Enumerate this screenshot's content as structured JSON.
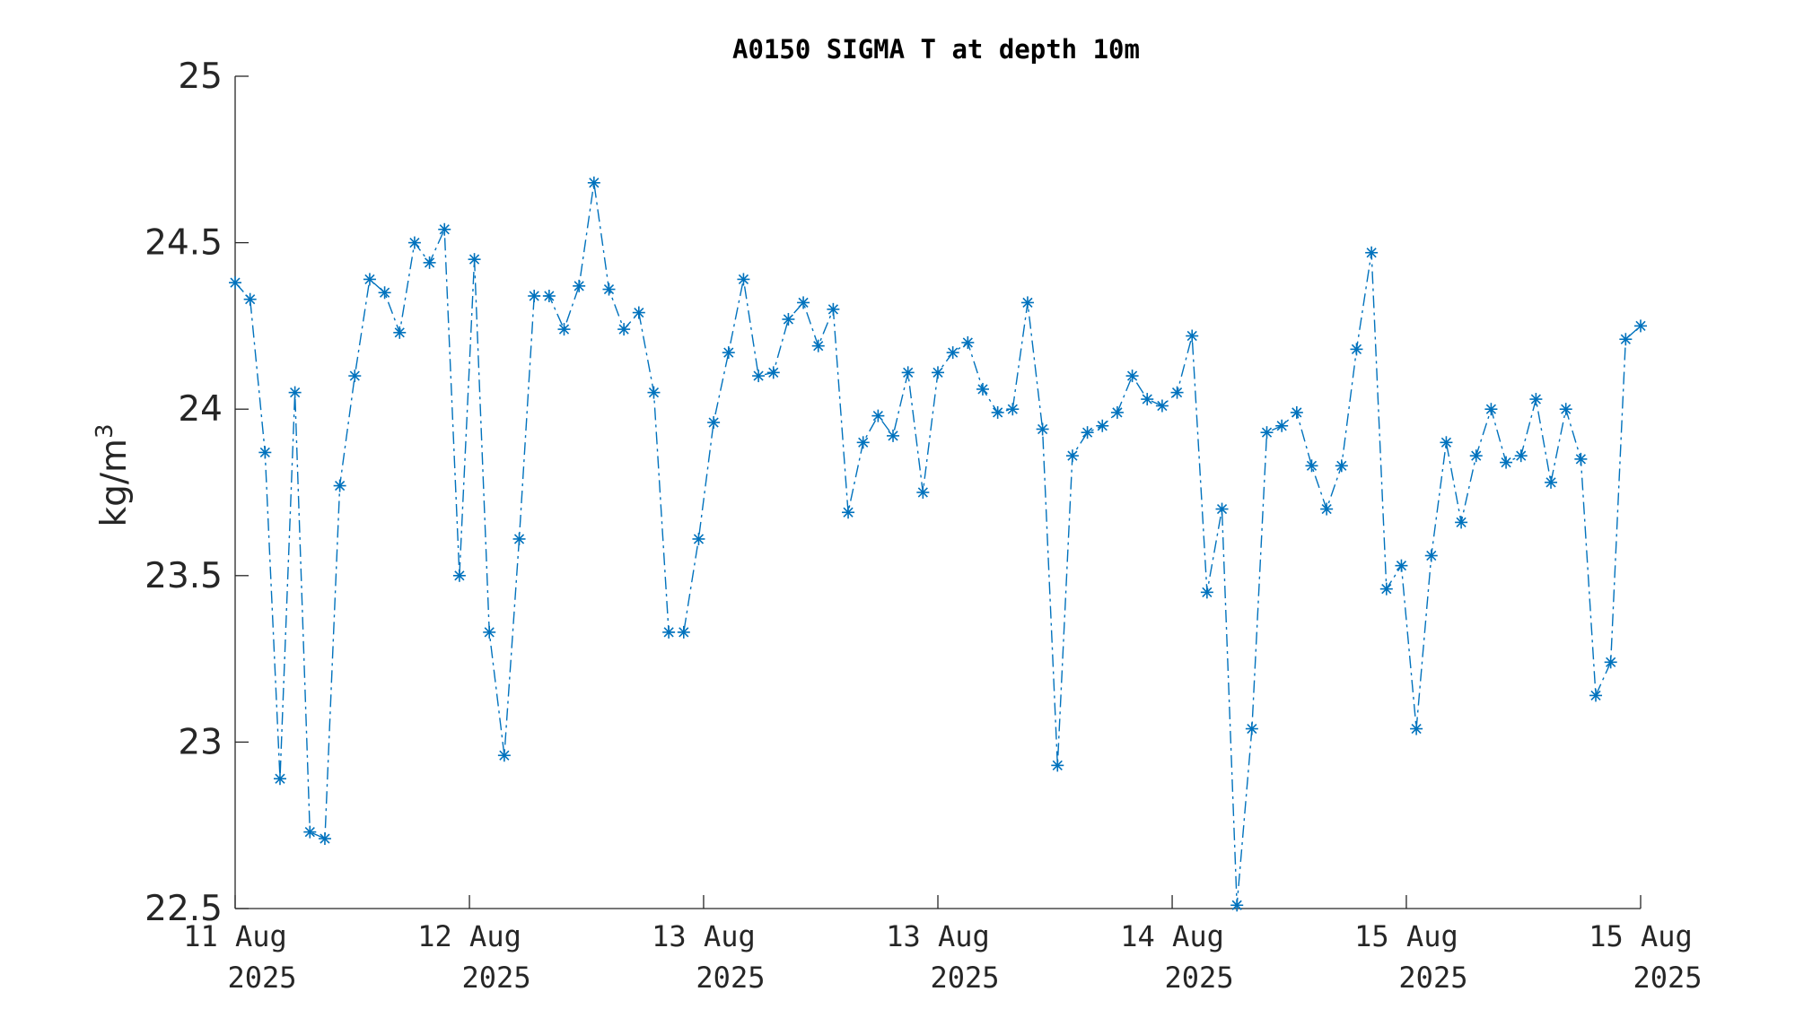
{
  "chart_data": {
    "type": "line",
    "title": "A0150 SIGMA T at depth 10m",
    "ylabel_base": "kg/m",
    "ylabel_sup": "3",
    "ylim": [
      22.5,
      25
    ],
    "yticks": [
      22.5,
      23,
      23.5,
      24,
      24.5,
      25
    ],
    "ytick_labels": [
      "22.5",
      "23",
      "23.5",
      "24",
      "24.5",
      "25"
    ],
    "xlim": [
      0,
      94
    ],
    "xticks": [
      0,
      15.67,
      31.33,
      47,
      62.67,
      78.33,
      94
    ],
    "xtick_labels": [
      {
        "line1": "11 Aug",
        "line2": "2025"
      },
      {
        "line1": "12 Aug",
        "line2": "2025"
      },
      {
        "line1": "13 Aug",
        "line2": "2025"
      },
      {
        "line1": "13 Aug",
        "line2": "2025"
      },
      {
        "line1": "14 Aug",
        "line2": "2025"
      },
      {
        "line1": "15 Aug",
        "line2": "2025"
      },
      {
        "line1": "15 Aug",
        "line2": "2025"
      }
    ],
    "series": [
      {
        "color": "#0072BD",
        "line_style": "dash-dot",
        "marker": "asterisk",
        "values": [
          24.38,
          24.33,
          23.87,
          22.89,
          24.05,
          22.73,
          22.71,
          23.77,
          24.1,
          24.39,
          24.35,
          24.23,
          24.5,
          24.44,
          24.54,
          23.5,
          24.45,
          23.33,
          22.96,
          23.61,
          24.34,
          24.34,
          24.24,
          24.37,
          24.68,
          24.36,
          24.24,
          24.29,
          24.05,
          23.33,
          23.33,
          23.61,
          23.96,
          24.17,
          24.39,
          24.1,
          24.11,
          24.27,
          24.32,
          24.19,
          24.3,
          23.69,
          23.9,
          23.98,
          23.92,
          24.11,
          23.75,
          24.11,
          24.17,
          24.2,
          24.06,
          23.99,
          24.0,
          24.32,
          23.94,
          22.93,
          23.86,
          23.93,
          23.95,
          23.99,
          24.1,
          24.03,
          24.01,
          24.05,
          24.22,
          23.45,
          23.7,
          22.51,
          23.04,
          23.93,
          23.95,
          23.99,
          23.83,
          23.7,
          23.83,
          24.18,
          24.47,
          23.46,
          23.53,
          23.04,
          23.56,
          23.9,
          23.66,
          23.86,
          24.0,
          23.84,
          23.86,
          24.03,
          23.78,
          24.0,
          23.85,
          23.14,
          23.24,
          24.21,
          24.25
        ]
      }
    ],
    "grid": false,
    "legend": "none"
  }
}
